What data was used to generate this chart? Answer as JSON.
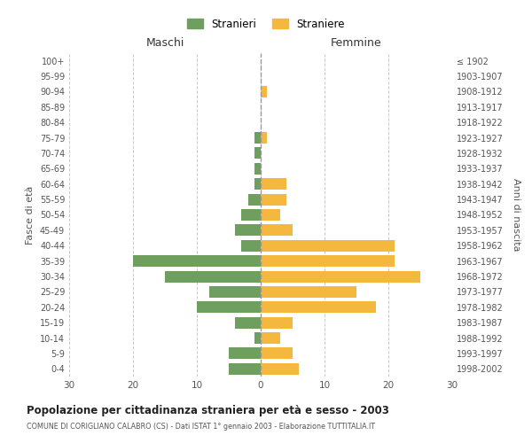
{
  "age_groups": [
    "0-4",
    "5-9",
    "10-14",
    "15-19",
    "20-24",
    "25-29",
    "30-34",
    "35-39",
    "40-44",
    "45-49",
    "50-54",
    "55-59",
    "60-64",
    "65-69",
    "70-74",
    "75-79",
    "80-84",
    "85-89",
    "90-94",
    "95-99",
    "100+"
  ],
  "birth_years": [
    "1998-2002",
    "1993-1997",
    "1988-1992",
    "1983-1987",
    "1978-1982",
    "1973-1977",
    "1968-1972",
    "1963-1967",
    "1958-1962",
    "1953-1957",
    "1948-1952",
    "1943-1947",
    "1938-1942",
    "1933-1937",
    "1928-1932",
    "1923-1927",
    "1918-1922",
    "1913-1917",
    "1908-1912",
    "1903-1907",
    "≤ 1902"
  ],
  "maschi": [
    5,
    5,
    1,
    4,
    10,
    8,
    15,
    20,
    3,
    4,
    3,
    2,
    1,
    1,
    1,
    1,
    0,
    0,
    0,
    0,
    0
  ],
  "femmine": [
    6,
    5,
    3,
    5,
    18,
    15,
    25,
    21,
    21,
    5,
    3,
    4,
    4,
    0,
    0,
    1,
    0,
    0,
    1,
    0,
    0
  ],
  "maschi_color": "#6f9f5f",
  "femmine_color": "#f5b83f",
  "title": "Popolazione per cittadinanza straniera per età e sesso - 2003",
  "subtitle": "COMUNE DI CORIGLIANO CALABRO (CS) - Dati ISTAT 1° gennaio 2003 - Elaborazione TUTTITALIA.IT",
  "xlabel_left": "Maschi",
  "xlabel_right": "Femmine",
  "ylabel_left": "Fasce di età",
  "ylabel_right": "Anni di nascita",
  "legend_maschi": "Stranieri",
  "legend_femmine": "Straniere",
  "xlim": 30,
  "background_color": "#ffffff",
  "grid_color": "#cccccc"
}
